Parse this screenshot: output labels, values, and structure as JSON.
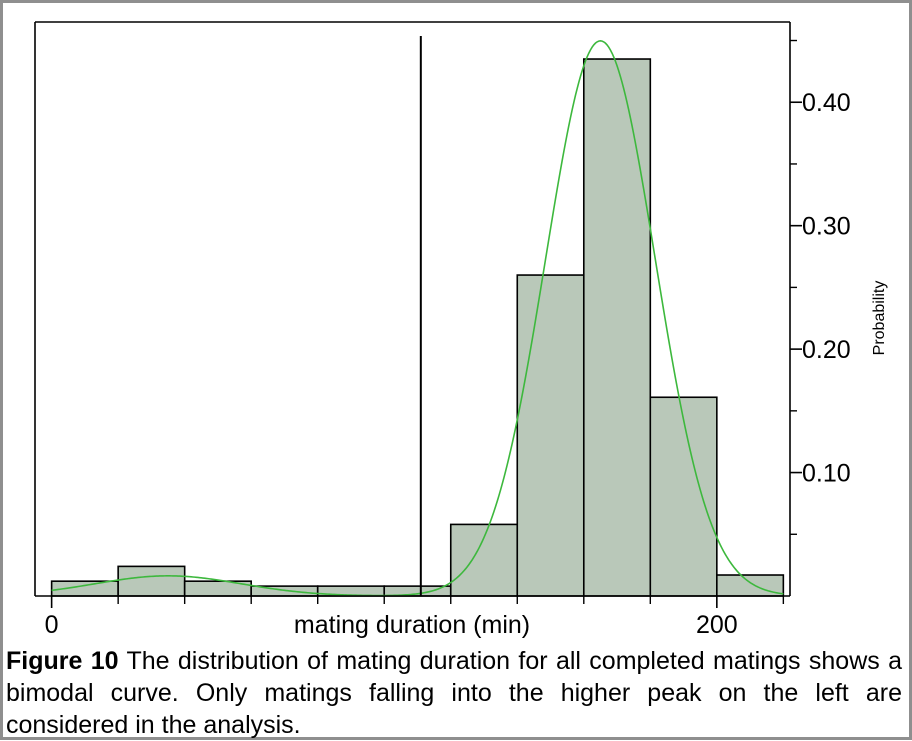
{
  "chart_data": {
    "type": "bar",
    "xlabel": "mating duration (min)",
    "ylabel": "Probability",
    "xlim": [
      -5,
      222
    ],
    "ylim": [
      0,
      0.465
    ],
    "x_tick_labels": [
      {
        "value": 0,
        "label": "0"
      },
      {
        "value": 200,
        "label": "200"
      }
    ],
    "x_minor_ticks": [
      20,
      40,
      60,
      80,
      100,
      120,
      140,
      160,
      180,
      220
    ],
    "y_tick_labels": [
      {
        "value": 0.1,
        "label": "0.10"
      },
      {
        "value": 0.2,
        "label": "0.20"
      },
      {
        "value": 0.3,
        "label": "0.30"
      },
      {
        "value": 0.4,
        "label": "0.40"
      }
    ],
    "y_minor_ticks": [
      0.05,
      0.15,
      0.25,
      0.35,
      0.45
    ],
    "bin_width": 20,
    "bins": [
      {
        "start": 0,
        "value": 0.012
      },
      {
        "start": 20,
        "value": 0.024
      },
      {
        "start": 40,
        "value": 0.012
      },
      {
        "start": 60,
        "value": 0.008
      },
      {
        "start": 80,
        "value": 0.008
      },
      {
        "start": 100,
        "value": 0.008
      },
      {
        "start": 120,
        "value": 0.058
      },
      {
        "start": 140,
        "value": 0.26
      },
      {
        "start": 160,
        "value": 0.435
      },
      {
        "start": 180,
        "value": 0.161
      },
      {
        "start": 200,
        "value": 0.017
      }
    ],
    "cutoff_x": 111,
    "density_curve": {
      "components": [
        {
          "weight": 0.045,
          "mean": 35,
          "sd": 22
        },
        {
          "weight": 0.93,
          "mean": 165,
          "sd": 16.5
        }
      ],
      "scale": 20
    },
    "colors": {
      "bar_fill": "#b9c8b9",
      "bar_stroke": "#000000",
      "curve": "#3db83d",
      "cutoff": "#000000"
    }
  },
  "caption": {
    "label": "Figure 10",
    "text": " The distribution of mating duration for all completed matings shows a bimodal curve. Only matings falling into the higher peak on the left are considered in the analysis."
  }
}
